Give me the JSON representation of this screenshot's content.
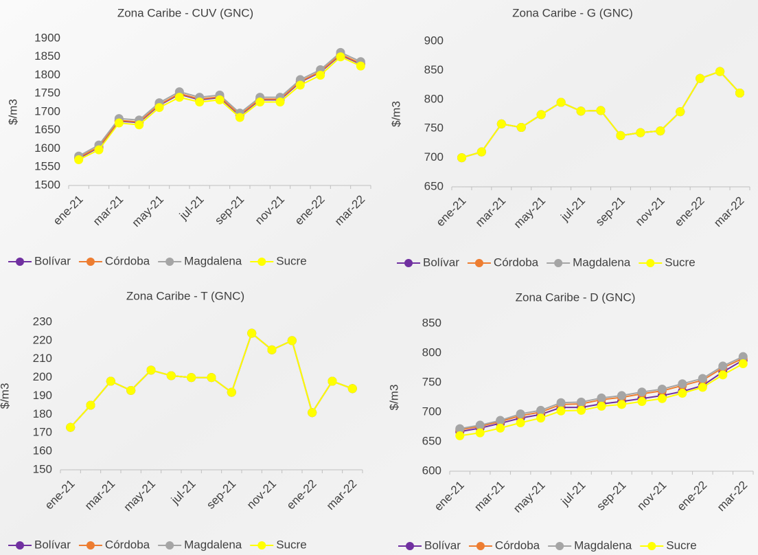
{
  "chart_data": [
    {
      "type": "line",
      "title": "Zona Caribe - CUV (GNC)",
      "ylabel": "$/m3",
      "categories": [
        "ene-21",
        null,
        "mar-21",
        null,
        "may-21",
        null,
        "jul-21",
        null,
        "sep-21",
        null,
        "nov-21",
        null,
        "ene-22",
        null,
        "mar-22"
      ],
      "ylim": [
        1500,
        1900
      ],
      "yticks": [
        1500,
        1550,
        1600,
        1650,
        1700,
        1750,
        1800,
        1850,
        1900
      ],
      "legend": "bottom",
      "series": [
        {
          "name": "Bolívar",
          "color": "#7030a0",
          "values": [
            1574,
            1603,
            1675,
            1671,
            1718,
            1748,
            1733,
            1739,
            1690,
            1733,
            1733,
            1781,
            1808,
            1855,
            1830
          ]
        },
        {
          "name": "Córdoba",
          "color": "#ed7d31",
          "values": [
            1576,
            1605,
            1677,
            1673,
            1720,
            1750,
            1735,
            1741,
            1692,
            1735,
            1735,
            1783,
            1810,
            1857,
            1832
          ]
        },
        {
          "name": "Magdalena",
          "color": "#a5a5a5",
          "values": [
            1580,
            1610,
            1682,
            1678,
            1725,
            1755,
            1740,
            1746,
            1697,
            1740,
            1740,
            1788,
            1815,
            1862,
            1837
          ]
        },
        {
          "name": "Sucre",
          "color": "#ffff00",
          "values": [
            1570,
            1597,
            1670,
            1665,
            1712,
            1740,
            1727,
            1733,
            1685,
            1727,
            1727,
            1773,
            1800,
            1850,
            1825
          ]
        }
      ]
    },
    {
      "type": "line",
      "title": "Zona Caribe - G (GNC)",
      "ylabel": "$/m3",
      "categories": [
        "ene-21",
        null,
        "mar-21",
        null,
        "may-21",
        null,
        "jul-21",
        null,
        "sep-21",
        null,
        "nov-21",
        null,
        "ene-22",
        null,
        "mar-22"
      ],
      "ylim": [
        650,
        900
      ],
      "yticks": [
        650,
        700,
        750,
        800,
        850,
        900
      ],
      "legend": "bottom",
      "series": [
        {
          "name": "Bolívar",
          "color": "#7030a0",
          "values": [
            700,
            710,
            758,
            752,
            774,
            795,
            780,
            781,
            738,
            743,
            746,
            779,
            836,
            848,
            811
          ]
        },
        {
          "name": "Córdoba",
          "color": "#ed7d31",
          "values": [
            700,
            710,
            758,
            752,
            774,
            795,
            780,
            781,
            738,
            743,
            746,
            779,
            836,
            848,
            811
          ]
        },
        {
          "name": "Magdalena",
          "color": "#a5a5a5",
          "values": [
            700,
            710,
            758,
            752,
            774,
            795,
            780,
            781,
            738,
            743,
            746,
            779,
            836,
            848,
            811
          ]
        },
        {
          "name": "Sucre",
          "color": "#ffff00",
          "values": [
            700,
            710,
            758,
            752,
            774,
            795,
            780,
            781,
            738,
            743,
            746,
            779,
            836,
            848,
            811
          ]
        }
      ]
    },
    {
      "type": "line",
      "title": "Zona Caribe - T (GNC)",
      "ylabel": "$/m3",
      "categories": [
        "ene-21",
        null,
        "mar-21",
        null,
        "may-21",
        null,
        "jul-21",
        null,
        "sep-21",
        null,
        "nov-21",
        null,
        "ene-22",
        null,
        "mar-22"
      ],
      "ylim": [
        150,
        230
      ],
      "yticks": [
        150,
        160,
        170,
        180,
        190,
        200,
        210,
        220,
        230
      ],
      "legend": "bottom",
      "series": [
        {
          "name": "Bolívar",
          "color": "#7030a0",
          "values": [
            173,
            185,
            198,
            193,
            204,
            201,
            200,
            200,
            192,
            224,
            215,
            220,
            181,
            198,
            194
          ]
        },
        {
          "name": "Córdoba",
          "color": "#ed7d31",
          "values": [
            173,
            185,
            198,
            193,
            204,
            201,
            200,
            200,
            192,
            224,
            215,
            220,
            181,
            198,
            194
          ]
        },
        {
          "name": "Magdalena",
          "color": "#a5a5a5",
          "values": [
            173,
            185,
            198,
            193,
            204,
            201,
            200,
            200,
            192,
            224,
            215,
            220,
            181,
            198,
            194
          ]
        },
        {
          "name": "Sucre",
          "color": "#ffff00",
          "values": [
            173,
            185,
            198,
            193,
            204,
            201,
            200,
            200,
            192,
            224,
            215,
            220,
            181,
            198,
            194
          ]
        }
      ]
    },
    {
      "type": "line",
      "title": "Zona Caribe - D (GNC)",
      "ylabel": "$/m3",
      "categories": [
        "ene-21",
        null,
        "mar-21",
        null,
        "may-21",
        null,
        "jul-21",
        null,
        "sep-21",
        null,
        "nov-21",
        null,
        "ene-22",
        null,
        "mar-22"
      ],
      "ylim": [
        600,
        850
      ],
      "yticks": [
        600,
        650,
        700,
        750,
        800,
        850
      ],
      "legend": "bottom",
      "series": [
        {
          "name": "Bolívar",
          "color": "#7030a0",
          "values": [
            667,
            673,
            681,
            690,
            696,
            708,
            708,
            714,
            718,
            723,
            728,
            735,
            745,
            768,
            788
          ]
        },
        {
          "name": "Córdoba",
          "color": "#ed7d31",
          "values": [
            670,
            676,
            684,
            694,
            700,
            713,
            714,
            721,
            725,
            731,
            736,
            745,
            754,
            775,
            791
          ]
        },
        {
          "name": "Magdalena",
          "color": "#a5a5a5",
          "values": [
            672,
            678,
            686,
            697,
            703,
            716,
            717,
            724,
            728,
            734,
            739,
            748,
            757,
            778,
            794
          ]
        },
        {
          "name": "Sucre",
          "color": "#ffff00",
          "values": [
            660,
            665,
            673,
            682,
            690,
            702,
            703,
            710,
            713,
            718,
            723,
            732,
            742,
            763,
            782
          ]
        }
      ]
    }
  ]
}
